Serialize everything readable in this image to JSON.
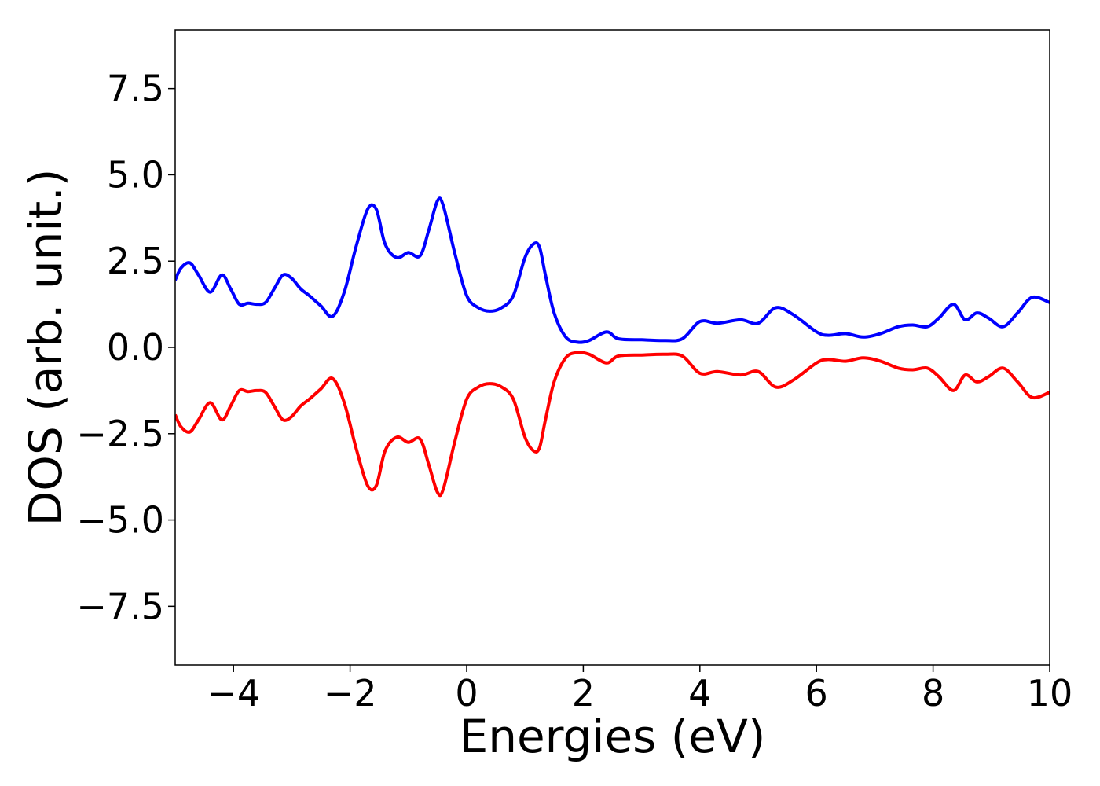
{
  "chart_data": {
    "type": "line",
    "xlabel": "Energies (eV)",
    "ylabel": "DOS (arb. unit.)",
    "xlim": [
      -5,
      10
    ],
    "ylim": [
      -9.2,
      9.2
    ],
    "grid": false,
    "legend": "none",
    "x_ticks": [
      -4,
      -2,
      0,
      2,
      4,
      6,
      8,
      10
    ],
    "x_tick_labels": [
      "−4",
      "−2",
      "0",
      "2",
      "4",
      "6",
      "8",
      "10"
    ],
    "y_ticks": [
      7.5,
      5.0,
      2.5,
      0.0,
      -2.5,
      -5.0,
      -7.5
    ],
    "y_tick_labels": [
      "7.5",
      "5.0",
      "2.5",
      "0.0",
      "−2.5",
      "−5.0",
      "−7.5"
    ],
    "series": [
      {
        "color": "#0000ff",
        "x": [
          -5.0,
          -4.9,
          -4.75,
          -4.6,
          -4.4,
          -4.2,
          -4.05,
          -3.9,
          -3.75,
          -3.6,
          -3.45,
          -3.3,
          -3.15,
          -3.0,
          -2.85,
          -2.7,
          -2.5,
          -2.3,
          -2.1,
          -1.9,
          -1.7,
          -1.55,
          -1.4,
          -1.2,
          -1.0,
          -0.8,
          -0.65,
          -0.5,
          -0.4,
          -0.2,
          0.0,
          0.2,
          0.4,
          0.6,
          0.8,
          1.0,
          1.15,
          1.25,
          1.35,
          1.5,
          1.7,
          1.9,
          2.1,
          2.4,
          2.6,
          3.0,
          3.4,
          3.7,
          4.0,
          4.3,
          4.7,
          5.0,
          5.3,
          5.6,
          6.0,
          6.2,
          6.5,
          6.8,
          7.1,
          7.4,
          7.65,
          7.9,
          8.1,
          8.35,
          8.55,
          8.75,
          8.95,
          9.2,
          9.45,
          9.7,
          10.0
        ],
        "y": [
          1.95,
          2.3,
          2.45,
          2.1,
          1.6,
          2.1,
          1.7,
          1.25,
          1.28,
          1.25,
          1.3,
          1.7,
          2.1,
          2.0,
          1.7,
          1.5,
          1.2,
          0.9,
          1.6,
          2.9,
          4.0,
          4.0,
          3.0,
          2.6,
          2.75,
          2.65,
          3.4,
          4.25,
          4.1,
          2.7,
          1.5,
          1.15,
          1.05,
          1.15,
          1.5,
          2.6,
          3.0,
          2.9,
          2.1,
          1.0,
          0.3,
          0.15,
          0.2,
          0.45,
          0.25,
          0.22,
          0.2,
          0.25,
          0.75,
          0.7,
          0.8,
          0.7,
          1.15,
          0.95,
          0.45,
          0.35,
          0.4,
          0.3,
          0.4,
          0.6,
          0.65,
          0.6,
          0.85,
          1.25,
          0.8,
          1.0,
          0.85,
          0.6,
          1.0,
          1.45,
          1.3
        ]
      },
      {
        "color": "#ff0000",
        "x": [
          -5.0,
          -4.9,
          -4.75,
          -4.6,
          -4.4,
          -4.2,
          -4.05,
          -3.9,
          -3.75,
          -3.6,
          -3.45,
          -3.3,
          -3.15,
          -3.0,
          -2.85,
          -2.7,
          -2.5,
          -2.3,
          -2.1,
          -1.9,
          -1.7,
          -1.55,
          -1.4,
          -1.2,
          -1.0,
          -0.8,
          -0.65,
          -0.5,
          -0.4,
          -0.2,
          0.0,
          0.2,
          0.4,
          0.6,
          0.8,
          1.0,
          1.15,
          1.25,
          1.35,
          1.5,
          1.7,
          1.9,
          2.1,
          2.4,
          2.6,
          3.0,
          3.4,
          3.7,
          4.0,
          4.3,
          4.7,
          5.0,
          5.3,
          5.6,
          6.0,
          6.2,
          6.5,
          6.8,
          7.1,
          7.4,
          7.65,
          7.9,
          8.1,
          8.35,
          8.55,
          8.75,
          8.95,
          9.2,
          9.45,
          9.7,
          10.0
        ],
        "y": [
          -1.95,
          -2.3,
          -2.45,
          -2.1,
          -1.6,
          -2.1,
          -1.7,
          -1.25,
          -1.28,
          -1.25,
          -1.3,
          -1.7,
          -2.1,
          -2.0,
          -1.7,
          -1.5,
          -1.2,
          -0.9,
          -1.6,
          -2.9,
          -4.0,
          -4.0,
          -3.0,
          -2.6,
          -2.75,
          -2.65,
          -3.4,
          -4.2,
          -4.1,
          -2.7,
          -1.5,
          -1.15,
          -1.05,
          -1.15,
          -1.5,
          -2.6,
          -3.0,
          -2.9,
          -2.1,
          -1.0,
          -0.3,
          -0.15,
          -0.2,
          -0.45,
          -0.25,
          -0.22,
          -0.2,
          -0.25,
          -0.75,
          -0.7,
          -0.8,
          -0.7,
          -1.15,
          -0.95,
          -0.45,
          -0.35,
          -0.4,
          -0.3,
          -0.4,
          -0.6,
          -0.65,
          -0.6,
          -0.85,
          -1.25,
          -0.8,
          -1.0,
          -0.85,
          -0.6,
          -1.0,
          -1.45,
          -1.3
        ]
      }
    ]
  }
}
